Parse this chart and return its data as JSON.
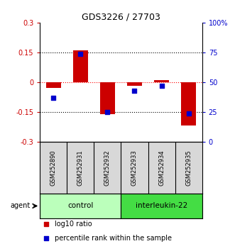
{
  "title": "GDS3226 / 27703",
  "samples": [
    "GSM252890",
    "GSM252931",
    "GSM252932",
    "GSM252933",
    "GSM252934",
    "GSM252935"
  ],
  "log10_ratio": [
    -0.03,
    0.16,
    -0.16,
    -0.02,
    0.01,
    -0.22
  ],
  "percentile_rank": [
    37,
    74,
    25,
    43,
    47,
    24
  ],
  "ylim_left": [
    -0.3,
    0.3
  ],
  "yticks_left": [
    -0.3,
    -0.15,
    0,
    0.15,
    0.3
  ],
  "yticks_right": [
    0,
    25,
    50,
    75,
    100
  ],
  "hlines": [
    -0.15,
    0,
    0.15
  ],
  "hline_colors": [
    "black",
    "red",
    "black"
  ],
  "hline_styles": [
    "dotted",
    "dotted",
    "dotted"
  ],
  "bar_color": "#cc0000",
  "dot_color": "#0000cc",
  "left_ylabel_color": "#cc0000",
  "right_ylabel_color": "#0000cc",
  "control_color": "#bbffbb",
  "interleukin_color": "#44dd44",
  "agent_label": "agent",
  "control_label": "control",
  "interleukin_label": "interleukin-22",
  "legend_red_label": "log10 ratio",
  "legend_blue_label": "percentile rank within the sample",
  "bar_width": 0.55,
  "dot_size": 18,
  "figwidth": 3.31,
  "figheight": 3.54,
  "dpi": 100
}
